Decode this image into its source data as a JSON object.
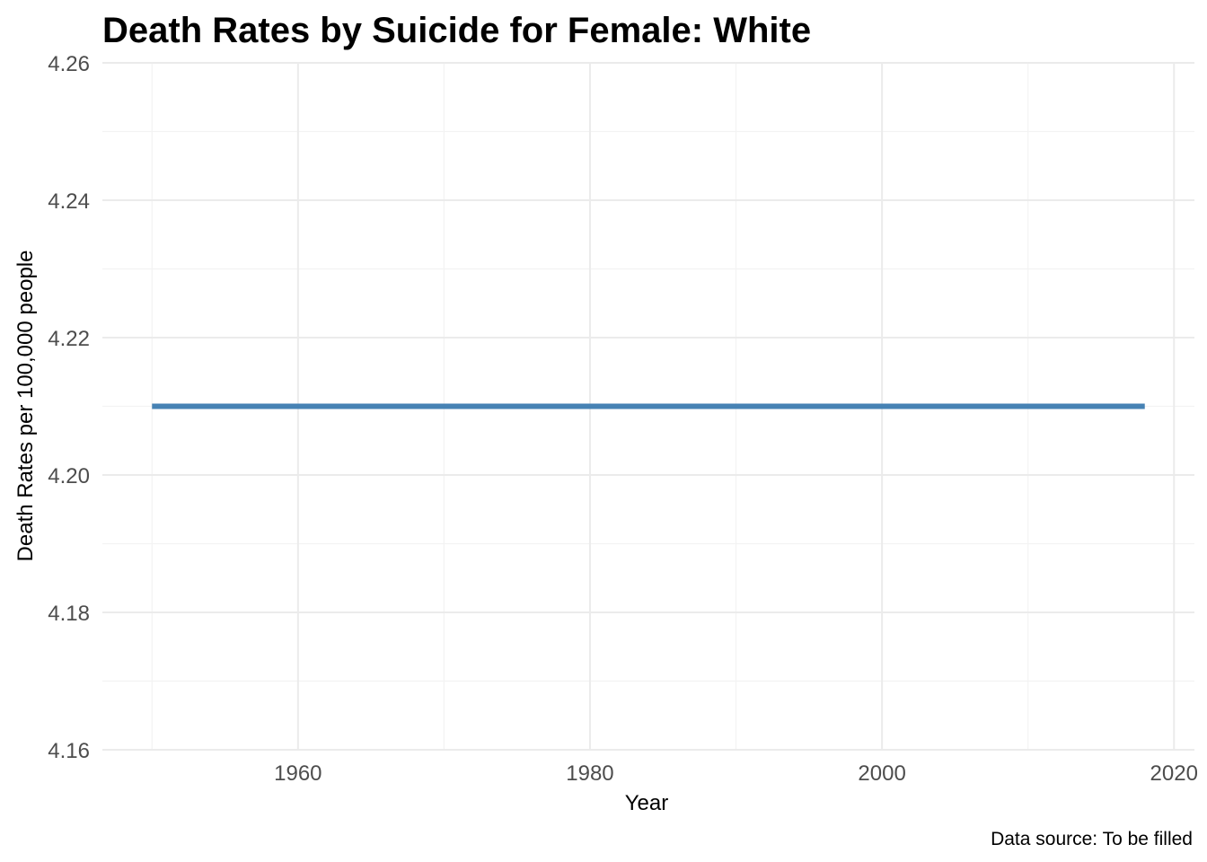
{
  "chart_data": {
    "type": "line",
    "title": "Death Rates by Suicide for Female: White",
    "xlabel": "Year",
    "ylabel": "Death Rates per 100,000 people",
    "caption": "Data source: To be filled",
    "xlim": [
      1946.6,
      2021.4
    ],
    "ylim": [
      4.16,
      4.26
    ],
    "x_ticks": [
      1960,
      1980,
      2000,
      2020
    ],
    "y_ticks": [
      4.16,
      4.18,
      4.2,
      4.22,
      4.24,
      4.26
    ],
    "y_tick_labels": [
      "4.16",
      "4.18",
      "4.20",
      "4.22",
      "4.24",
      "4.26"
    ],
    "x_minor_ticks": [
      1950,
      1970,
      1990,
      2010
    ],
    "y_minor_ticks": [
      4.17,
      4.19,
      4.21,
      4.23,
      4.25
    ],
    "grid": true,
    "legend": "none",
    "series": [
      {
        "color": "#4682b4",
        "x": [
          1950,
          2018
        ],
        "y": [
          4.21,
          4.21
        ]
      }
    ]
  }
}
